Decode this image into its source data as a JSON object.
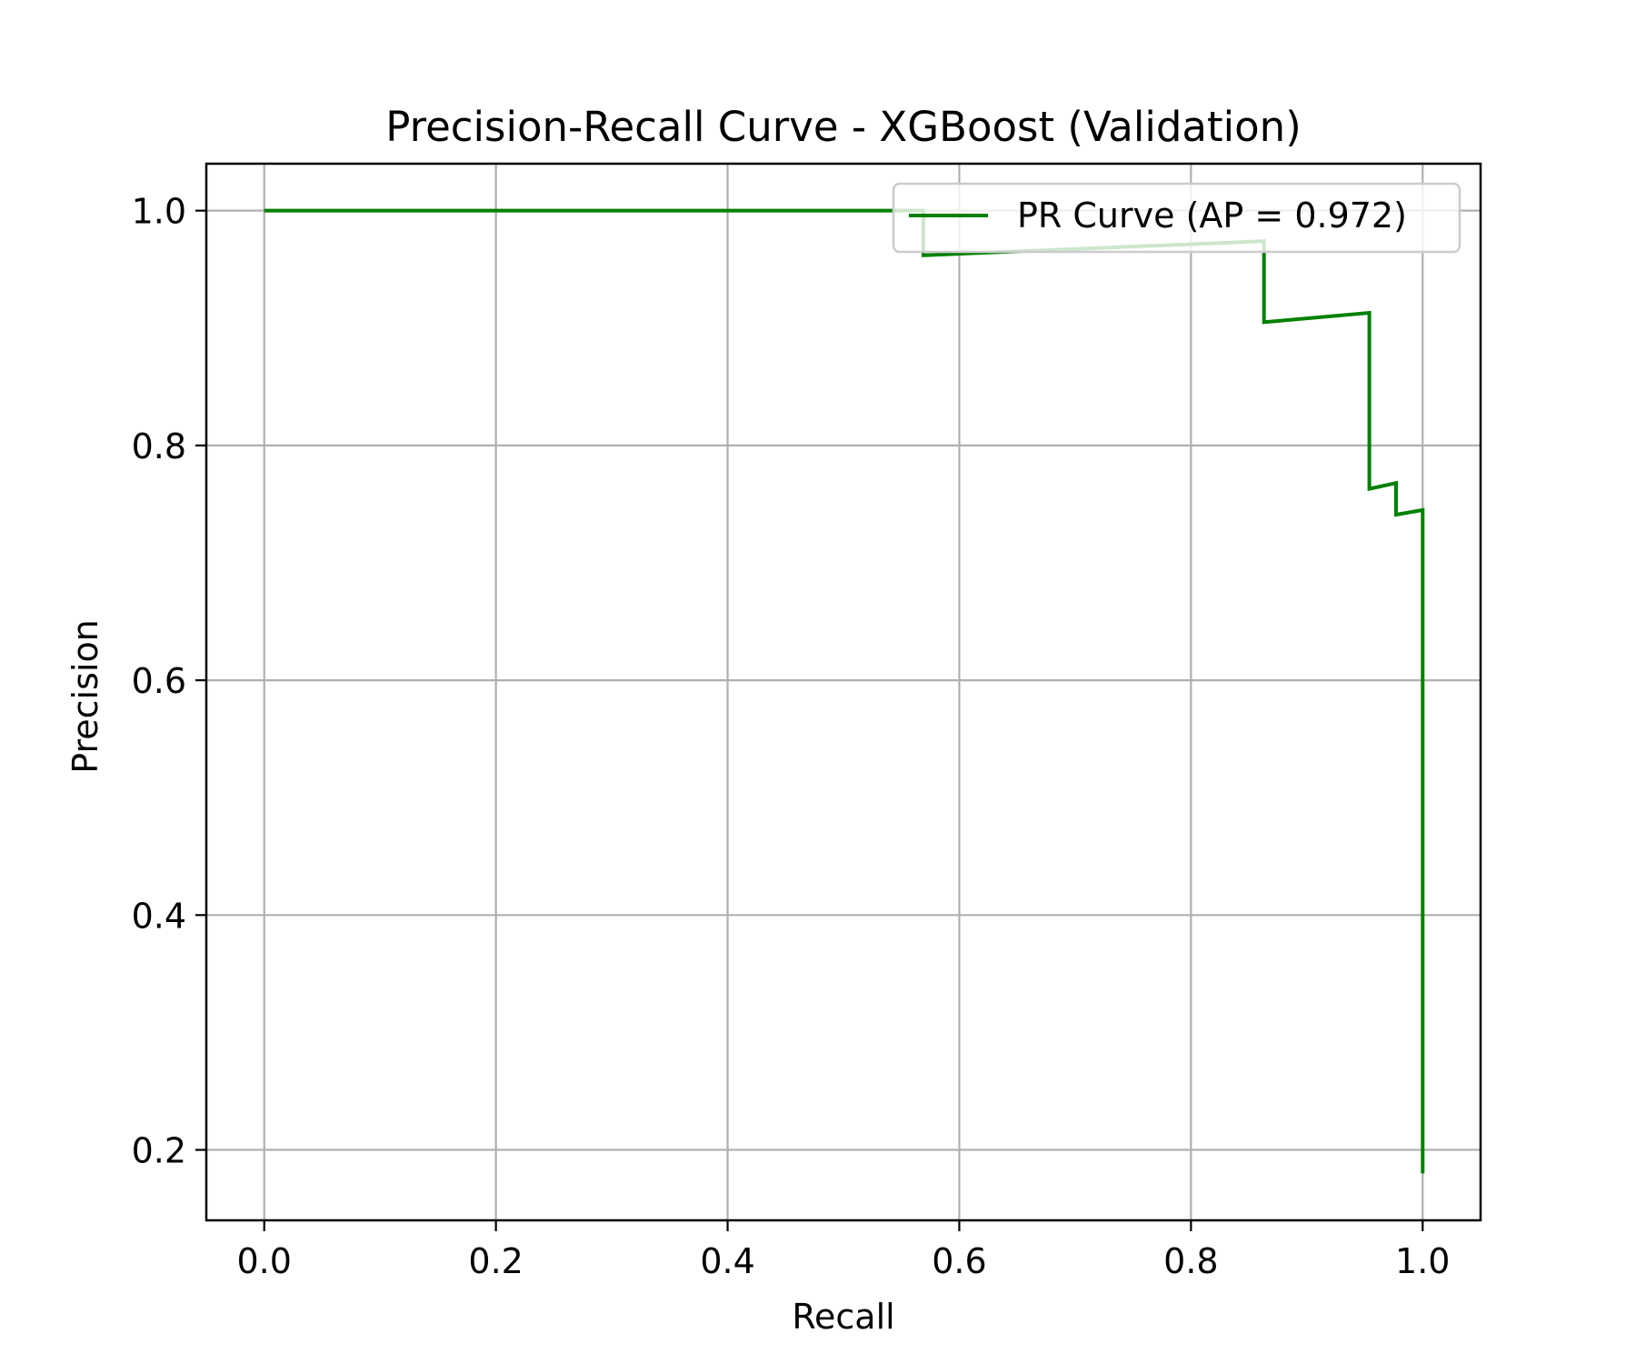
{
  "chart_data": {
    "type": "line",
    "title": "Precision-Recall Curve - XGBoost (Validation)",
    "xlabel": "Recall",
    "ylabel": "Precision",
    "xlim": [
      -0.05,
      1.05
    ],
    "ylim": [
      0.14,
      1.04
    ],
    "xticks": [
      0.0,
      0.2,
      0.4,
      0.6,
      0.8,
      1.0
    ],
    "xtick_labels": [
      "0.0",
      "0.2",
      "0.4",
      "0.6",
      "0.8",
      "1.0"
    ],
    "yticks": [
      0.2,
      0.4,
      0.6,
      0.8,
      1.0
    ],
    "ytick_labels": [
      "0.2",
      "0.4",
      "0.6",
      "0.8",
      "1.0"
    ],
    "grid": true,
    "legend_position": "upper right",
    "series": [
      {
        "name": "PR Curve (AP = 0.972)",
        "color": "#008000",
        "x": [
          0.0,
          0.569,
          0.569,
          0.863,
          0.863,
          0.954,
          0.954,
          0.977,
          0.977,
          1.0,
          1.0
        ],
        "y": [
          1.0,
          1.0,
          0.962,
          0.974,
          0.905,
          0.913,
          0.763,
          0.768,
          0.741,
          0.745,
          0.18
        ]
      }
    ]
  }
}
